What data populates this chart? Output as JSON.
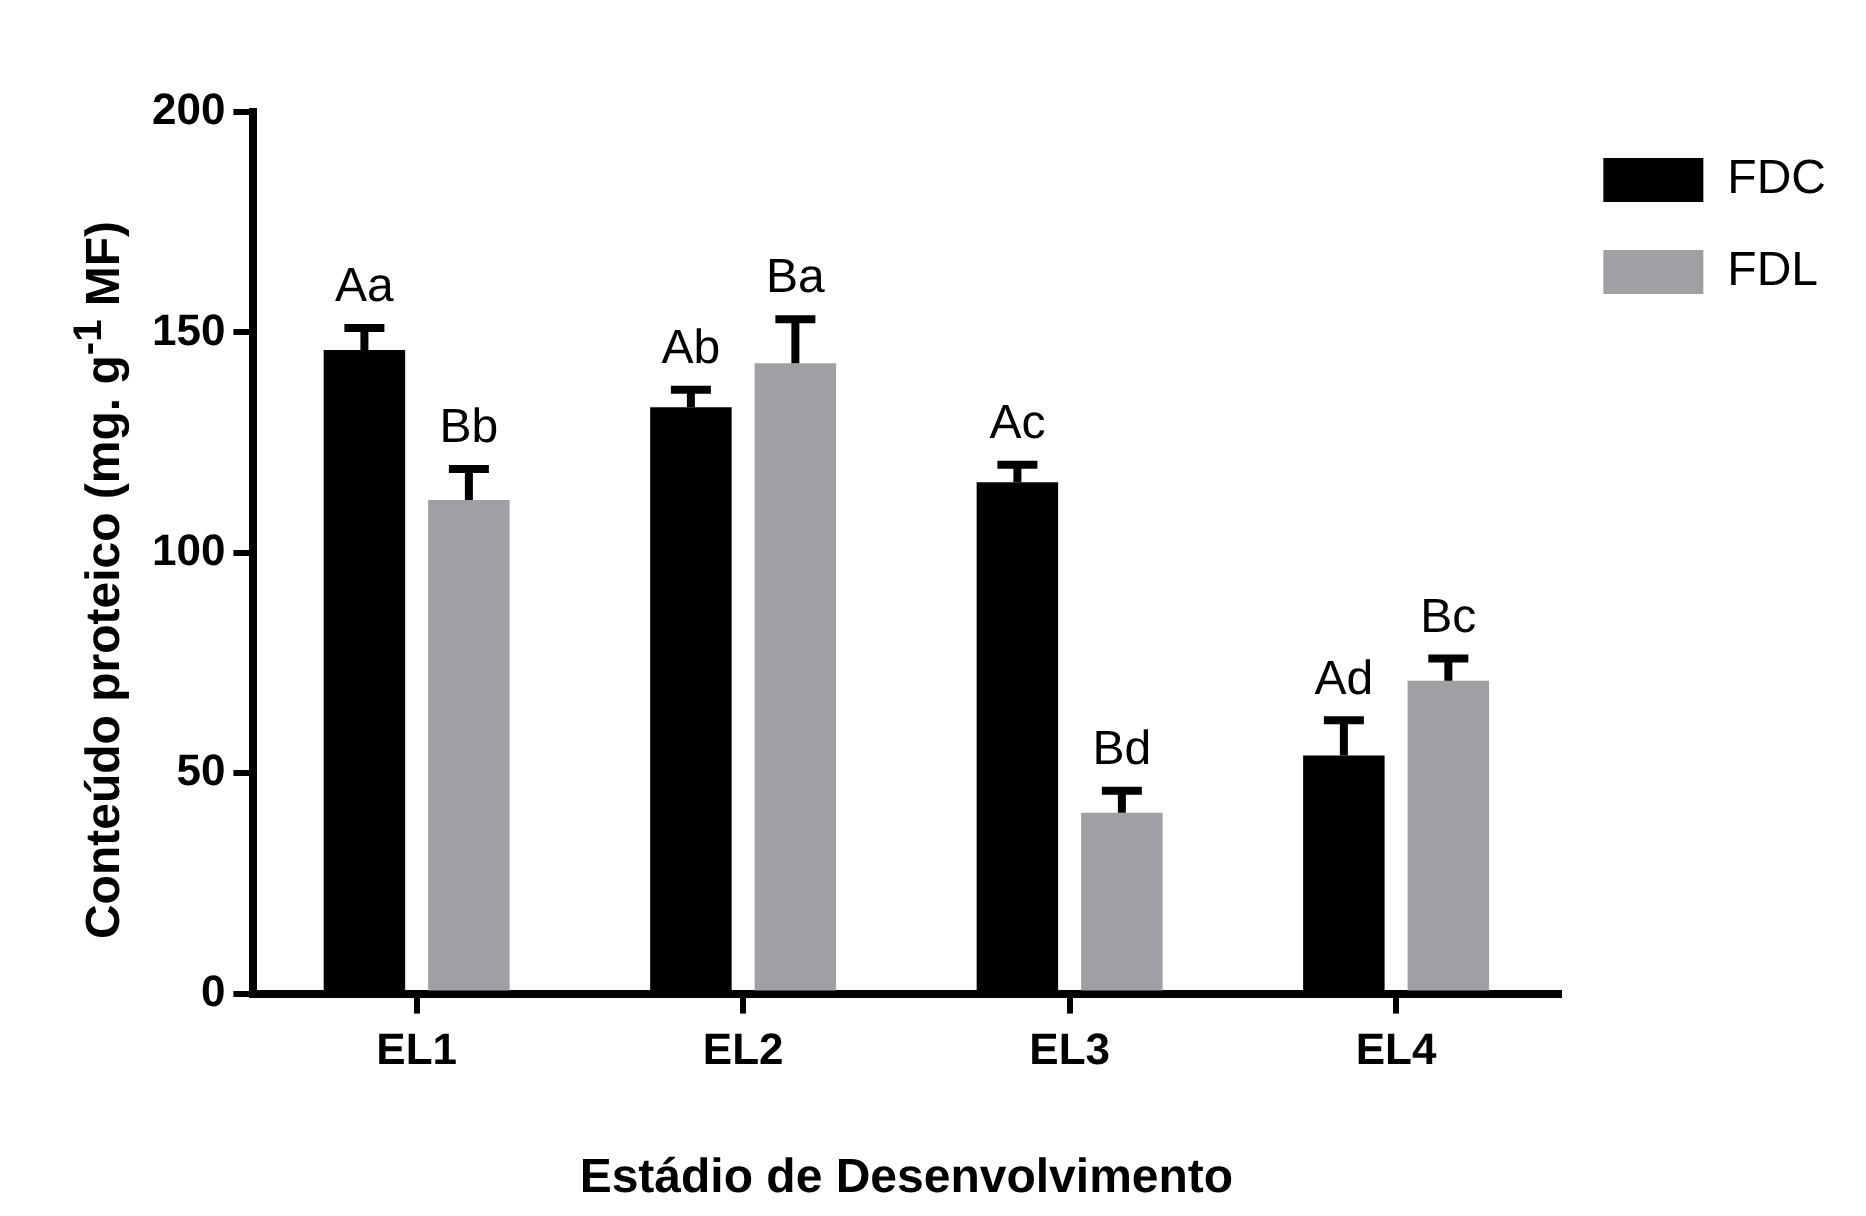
{
  "chart_data": {
    "type": "bar",
    "xlabel": "Estádio de Desenvolvimento",
    "ylabel": "Conteúdo proteico (mg. g$^{-1}$ MF)",
    "categories": [
      "EL1",
      "EL2",
      "EL3",
      "EL4"
    ],
    "series": [
      {
        "name": "FDC",
        "color": "#000000",
        "values": [
          146,
          133,
          116,
          54
        ],
        "errors": [
          [
            146,
            151
          ],
          [
            133,
            137
          ],
          [
            116,
            120
          ],
          [
            54,
            62
          ]
        ],
        "value_labels": [
          "Aa",
          "Ab",
          "Ac",
          "Ad"
        ]
      },
      {
        "name": "FDL",
        "color": "#a0a0a4",
        "values": [
          112,
          143,
          41,
          71
        ],
        "errors": [
          [
            112,
            119
          ],
          [
            143,
            153
          ],
          [
            41,
            46
          ],
          [
            71,
            76
          ]
        ],
        "value_labels": [
          "Bb",
          "Ba",
          "Bd",
          "Bc"
        ]
      }
    ],
    "ylim": [
      0,
      200
    ],
    "yticks": [
      0,
      50,
      100,
      150,
      200
    ],
    "legend": "top right"
  }
}
